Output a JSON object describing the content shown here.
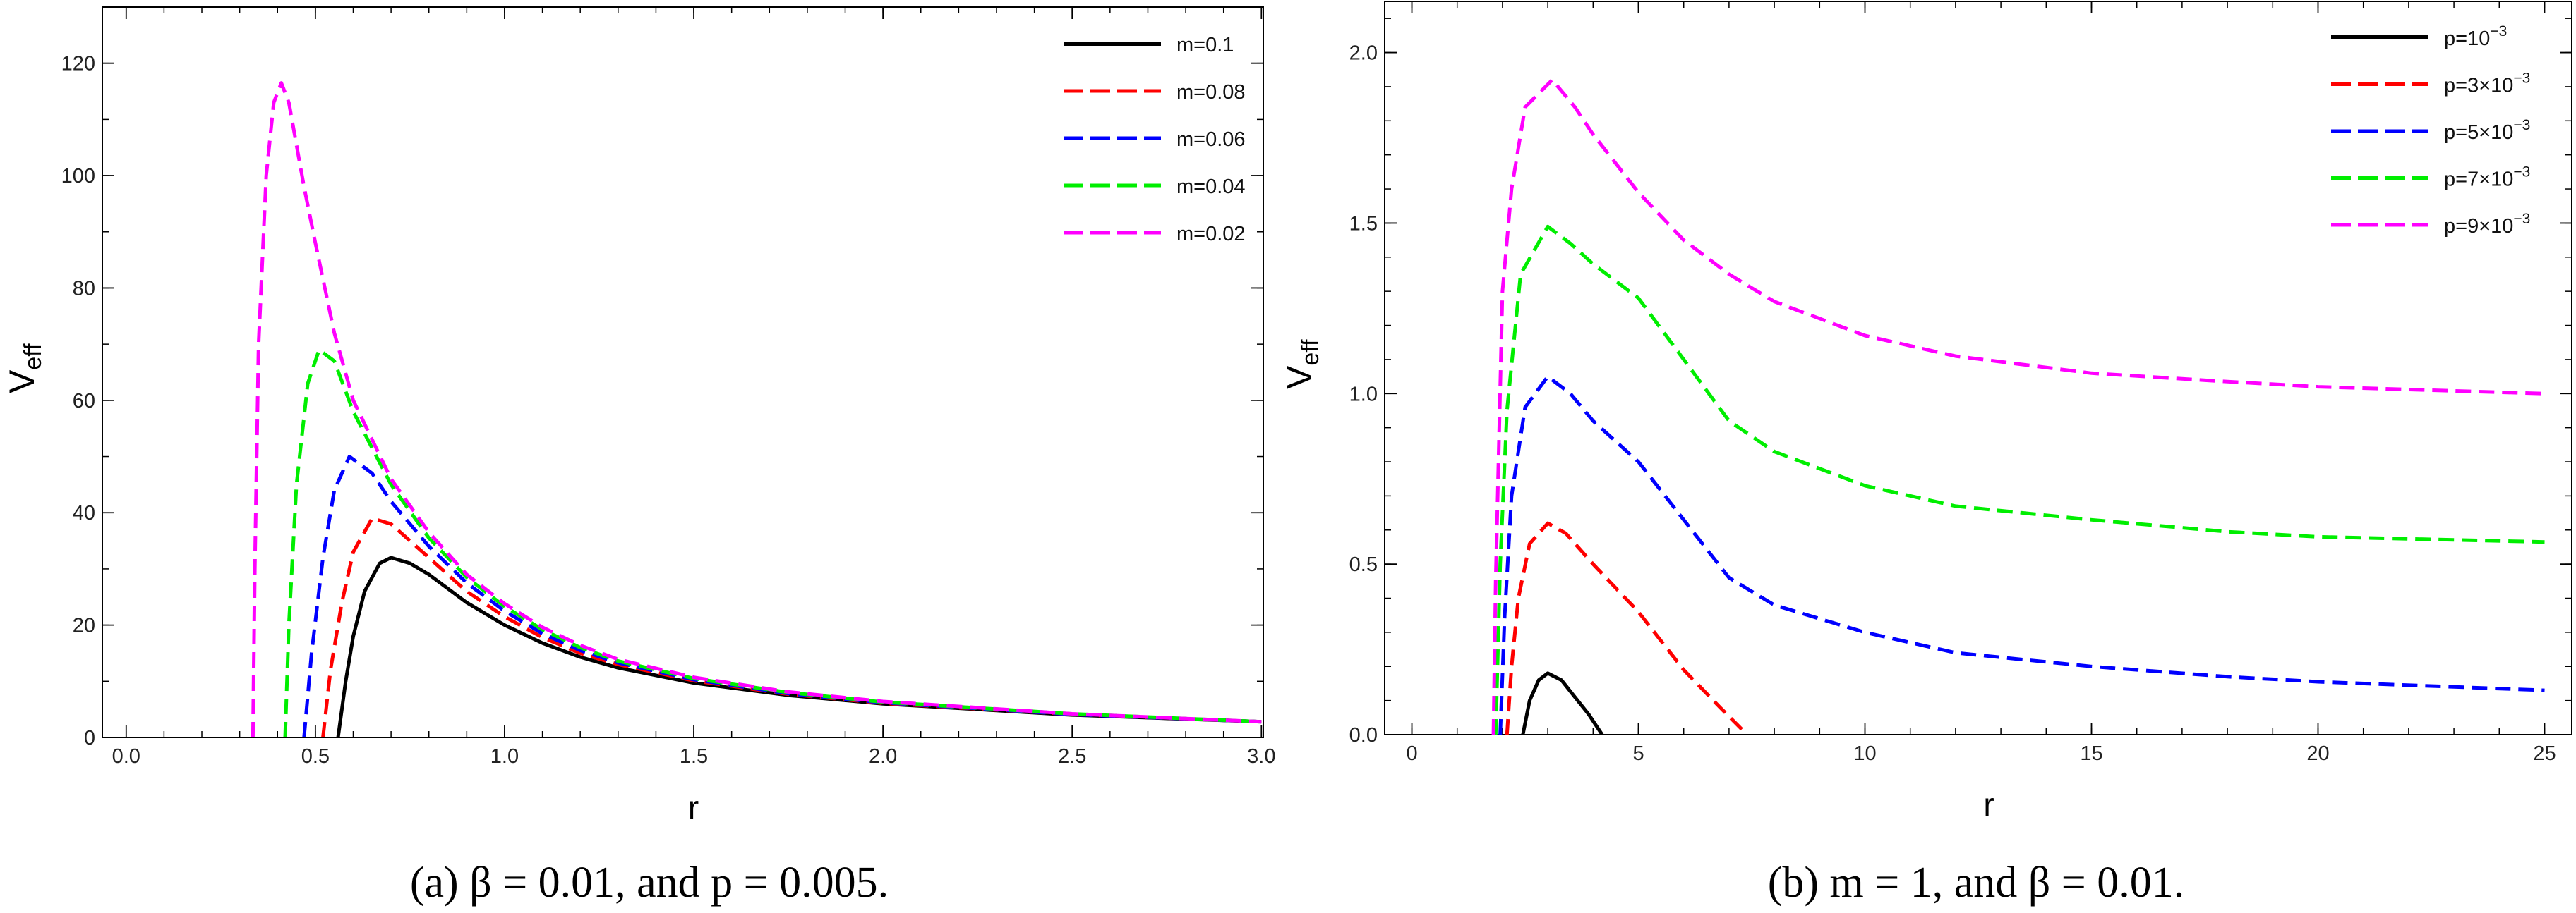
{
  "chart_data": [
    {
      "type": "line",
      "panel": "a",
      "caption": "(a) β = 0.01, and p = 0.005.",
      "xlabel": "r",
      "ylabel": "V",
      "ylabel_sub": "eff",
      "xlim": [
        -0.063,
        3.005
      ],
      "ylim": [
        0,
        130
      ],
      "xticks": [
        "0.0",
        "0.5",
        "1.0",
        "1.5",
        "2.0",
        "2.5",
        "3.0"
      ],
      "xtick_values": [
        0,
        0.5,
        1,
        1.5,
        2,
        2.5,
        3
      ],
      "xminor_step": 0.1,
      "yticks": [
        "0",
        "20",
        "40",
        "60",
        "80",
        "100",
        "120"
      ],
      "ytick_values": [
        0,
        20,
        40,
        60,
        80,
        100,
        120
      ],
      "yminor_step": 10,
      "legend_position": "top-right",
      "series": [
        {
          "name": "m=0.1",
          "color": "#000000",
          "dashed": false,
          "points": [
            [
              0.56,
              0
            ],
            [
              0.58,
              10
            ],
            [
              0.6,
              18
            ],
            [
              0.63,
              26
            ],
            [
              0.67,
              31
            ],
            [
              0.7,
              32
            ],
            [
              0.75,
              31
            ],
            [
              0.8,
              29
            ],
            [
              0.9,
              24
            ],
            [
              1.0,
              20
            ],
            [
              1.1,
              16.8
            ],
            [
              1.2,
              14.3
            ],
            [
              1.3,
              12.4
            ],
            [
              1.5,
              9.7
            ],
            [
              1.75,
              7.5
            ],
            [
              2.0,
              6
            ],
            [
              2.5,
              4
            ],
            [
              3.0,
              2.8
            ]
          ]
        },
        {
          "name": "m=0.08",
          "color": "#ff0000",
          "dashed": true,
          "points": [
            [
              0.52,
              0
            ],
            [
              0.54,
              12
            ],
            [
              0.57,
              24
            ],
            [
              0.6,
              33
            ],
            [
              0.65,
              39
            ],
            [
              0.7,
              38
            ],
            [
              0.8,
              32
            ],
            [
              0.9,
              26
            ],
            [
              1.0,
              21.5
            ],
            [
              1.1,
              17.8
            ],
            [
              1.2,
              15
            ],
            [
              1.3,
              13
            ],
            [
              1.5,
              10.1
            ],
            [
              1.75,
              7.7
            ],
            [
              2.0,
              6.1
            ],
            [
              2.5,
              4.1
            ],
            [
              3.0,
              2.8
            ]
          ]
        },
        {
          "name": "m=0.06",
          "color": "#0000ff",
          "dashed": true,
          "points": [
            [
              0.47,
              0
            ],
            [
              0.49,
              15
            ],
            [
              0.52,
              32
            ],
            [
              0.55,
              44
            ],
            [
              0.59,
              50
            ],
            [
              0.65,
              47
            ],
            [
              0.7,
              42
            ],
            [
              0.8,
              34
            ],
            [
              0.9,
              27.5
            ],
            [
              1.0,
              22.5
            ],
            [
              1.1,
              18.5
            ],
            [
              1.2,
              15.5
            ],
            [
              1.3,
              13.3
            ],
            [
              1.5,
              10.3
            ],
            [
              1.75,
              7.8
            ],
            [
              2.0,
              6.2
            ],
            [
              2.5,
              4.1
            ],
            [
              3.0,
              2.8
            ]
          ]
        },
        {
          "name": "m=0.04",
          "color": "#00ee00",
          "dashed": true,
          "points": [
            [
              0.42,
              0
            ],
            [
              0.43,
              20
            ],
            [
              0.45,
              45
            ],
            [
              0.48,
              63
            ],
            [
              0.51,
              69
            ],
            [
              0.55,
              67
            ],
            [
              0.6,
              58
            ],
            [
              0.7,
              45
            ],
            [
              0.8,
              35.5
            ],
            [
              0.9,
              28.5
            ],
            [
              1.0,
              23.3
            ],
            [
              1.1,
              19.2
            ],
            [
              1.2,
              16
            ],
            [
              1.3,
              13.6
            ],
            [
              1.5,
              10.5
            ],
            [
              1.75,
              8
            ],
            [
              2.0,
              6.3
            ],
            [
              2.5,
              4.2
            ],
            [
              3.0,
              2.8
            ]
          ]
        },
        {
          "name": "m=0.02",
          "color": "#ff00ff",
          "dashed": true,
          "points": [
            [
              0.335,
              0
            ],
            [
              0.34,
              30
            ],
            [
              0.35,
              70
            ],
            [
              0.37,
              100
            ],
            [
              0.39,
              113
            ],
            [
              0.41,
              116.5
            ],
            [
              0.43,
              113
            ],
            [
              0.47,
              98
            ],
            [
              0.5,
              88
            ],
            [
              0.55,
              72
            ],
            [
              0.6,
              60
            ],
            [
              0.7,
              46
            ],
            [
              0.8,
              36.5
            ],
            [
              0.9,
              29
            ],
            [
              1.0,
              23.8
            ],
            [
              1.1,
              19.6
            ],
            [
              1.2,
              16.4
            ],
            [
              1.3,
              13.9
            ],
            [
              1.5,
              10.7
            ],
            [
              1.75,
              8.1
            ],
            [
              2.0,
              6.4
            ],
            [
              2.5,
              4.2
            ],
            [
              3.0,
              2.8
            ]
          ]
        }
      ]
    },
    {
      "type": "line",
      "panel": "b",
      "caption": "(b) m = 1, and β = 0.01.",
      "xlabel": "r",
      "ylabel": "V",
      "ylabel_sub": "eff",
      "xlim": [
        -0.6,
        25.6
      ],
      "ylim": [
        0,
        2.15
      ],
      "xticks": [
        "0",
        "5",
        "10",
        "15",
        "20",
        "25"
      ],
      "xtick_values": [
        0,
        5,
        10,
        15,
        20,
        25
      ],
      "xminor_step": 1,
      "yticks": [
        "0.0",
        "0.5",
        "1.0",
        "1.5",
        "2.0"
      ],
      "ytick_values": [
        0,
        0.5,
        1,
        1.5,
        2
      ],
      "yminor_step": 0.1,
      "legend_position": "top-right",
      "series": [
        {
          "name": "p=10",
          "exp": "−3",
          "color": "#000000",
          "dashed": false,
          "points": [
            [
              2.45,
              0
            ],
            [
              2.6,
              0.1
            ],
            [
              2.8,
              0.16
            ],
            [
              3.0,
              0.18
            ],
            [
              3.3,
              0.16
            ],
            [
              3.6,
              0.11
            ],
            [
              3.9,
              0.06
            ],
            [
              4.2,
              0
            ]
          ]
        },
        {
          "name": "p=3×10",
          "exp": "−3",
          "color": "#ff0000",
          "dashed": true,
          "points": [
            [
              2.1,
              0
            ],
            [
              2.2,
              0.2
            ],
            [
              2.35,
              0.4
            ],
            [
              2.6,
              0.56
            ],
            [
              3.0,
              0.62
            ],
            [
              3.4,
              0.59
            ],
            [
              4.0,
              0.5
            ],
            [
              5.0,
              0.36
            ],
            [
              6.0,
              0.19
            ],
            [
              6.8,
              0.08
            ],
            [
              7.4,
              0
            ]
          ]
        },
        {
          "name": "p=5×10",
          "exp": "−3",
          "color": "#0000ff",
          "dashed": true,
          "points": [
            [
              1.95,
              0
            ],
            [
              2.05,
              0.35
            ],
            [
              2.2,
              0.7
            ],
            [
              2.5,
              0.96
            ],
            [
              3.0,
              1.05
            ],
            [
              3.5,
              1.0
            ],
            [
              4.0,
              0.92
            ],
            [
              5.0,
              0.8
            ],
            [
              6.0,
              0.63
            ],
            [
              7.0,
              0.46
            ],
            [
              8.0,
              0.38
            ],
            [
              10,
              0.3
            ],
            [
              12,
              0.24
            ],
            [
              15,
              0.2
            ],
            [
              18,
              0.17
            ],
            [
              20,
              0.155
            ],
            [
              25,
              0.13
            ]
          ]
        },
        {
          "name": "p=7×10",
          "exp": "−3",
          "color": "#00ee00",
          "dashed": true,
          "points": [
            [
              1.85,
              0
            ],
            [
              1.95,
              0.5
            ],
            [
              2.1,
              0.95
            ],
            [
              2.4,
              1.35
            ],
            [
              3.0,
              1.49
            ],
            [
              3.5,
              1.44
            ],
            [
              4.0,
              1.38
            ],
            [
              5.0,
              1.28
            ],
            [
              6.0,
              1.1
            ],
            [
              7.0,
              0.92
            ],
            [
              8.0,
              0.83
            ],
            [
              10,
              0.73
            ],
            [
              12,
              0.67
            ],
            [
              15,
              0.63
            ],
            [
              18,
              0.595
            ],
            [
              20,
              0.58
            ],
            [
              25,
              0.565
            ]
          ]
        },
        {
          "name": "p=9×10",
          "exp": "−3",
          "color": "#ff00ff",
          "dashed": true,
          "points": [
            [
              1.8,
              0
            ],
            [
              1.85,
              0.45
            ],
            [
              2.0,
              1.3
            ],
            [
              2.2,
              1.6
            ],
            [
              2.5,
              1.84
            ],
            [
              3.1,
              1.92
            ],
            [
              3.6,
              1.84
            ],
            [
              4.0,
              1.76
            ],
            [
              5.0,
              1.59
            ],
            [
              6.0,
              1.45
            ],
            [
              7.0,
              1.35
            ],
            [
              8.0,
              1.27
            ],
            [
              10,
              1.17
            ],
            [
              12,
              1.11
            ],
            [
              15,
              1.06
            ],
            [
              18,
              1.035
            ],
            [
              20,
              1.02
            ],
            [
              25,
              1.0
            ]
          ]
        }
      ]
    }
  ]
}
